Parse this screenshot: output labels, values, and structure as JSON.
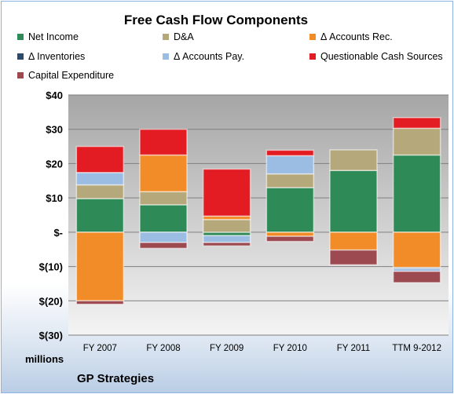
{
  "chart_data": {
    "type": "bar",
    "stacked": true,
    "title": "Free Cash Flow Components",
    "categories": [
      "FY 2007",
      "FY 2008",
      "FY 2009",
      "FY 2010",
      "FY 2011",
      "TTM 9-2012"
    ],
    "ylabel": "",
    "unit_label": "millions",
    "ylim": [
      -30,
      40
    ],
    "yticks": [
      40,
      30,
      20,
      10,
      0,
      -10,
      -20,
      -30
    ],
    "ytick_labels": [
      "$40",
      "$30",
      "$20",
      "$10",
      "$-",
      "$(10)",
      "$(20)",
      "$(30)"
    ],
    "grid": true,
    "legend_position": "top",
    "series": [
      {
        "name": "Net Income",
        "color": "#2e8b57",
        "values": [
          9.8,
          8.0,
          -1.0,
          13.0,
          18.0,
          22.5
        ]
      },
      {
        "name": "D&A",
        "color": "#b5a87a",
        "values": [
          4.0,
          3.8,
          3.7,
          4.0,
          6.0,
          7.8
        ]
      },
      {
        "name": "Δ Accounts Rec.",
        "color": "#f28c28",
        "values": [
          -20.0,
          10.7,
          1.0,
          -1.2,
          -5.2,
          -10.3
        ]
      },
      {
        "name": "Δ Inventories",
        "color": "#2e4a6b",
        "values": [
          0.0,
          0.0,
          0.0,
          0.0,
          0.0,
          -0.3
        ]
      },
      {
        "name": "Δ Accounts Pay.",
        "color": "#9cbde3",
        "values": [
          3.6,
          -3.0,
          -2.0,
          5.3,
          0.0,
          -0.8
        ]
      },
      {
        "name": "Questionable Cash Sources",
        "color": "#e31c23",
        "values": [
          7.6,
          7.5,
          13.7,
          1.6,
          0.0,
          3.1
        ]
      },
      {
        "name": "Capital Expenditure",
        "color": "#9c4a4f",
        "values": [
          -1.0,
          -1.7,
          -1.0,
          -1.5,
          -4.3,
          -3.3
        ]
      }
    ]
  },
  "footer": "GP Strategies"
}
